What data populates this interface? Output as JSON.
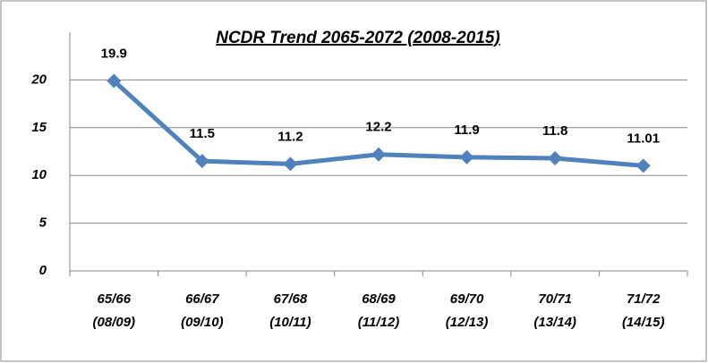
{
  "chart_data": {
    "type": "line",
    "title": "NCDR  Trend 2065-2072 (2008-2015)",
    "categories": [
      [
        "65/66",
        "(08/09)"
      ],
      [
        "66/67",
        "(09/10)"
      ],
      [
        "67/68",
        "(10/11)"
      ],
      [
        "68/69",
        "(11/12)"
      ],
      [
        "69/70",
        "(12/13)"
      ],
      [
        "70/71",
        "(13/14)"
      ],
      [
        "71/72",
        "(14/15)"
      ]
    ],
    "values": [
      19.9,
      11.5,
      11.2,
      12.2,
      11.9,
      11.8,
      11.01
    ],
    "color": "#4f81bd",
    "ylim": [
      0,
      25
    ],
    "yticks": [
      0,
      5,
      10,
      15,
      20
    ],
    "grid": true
  }
}
